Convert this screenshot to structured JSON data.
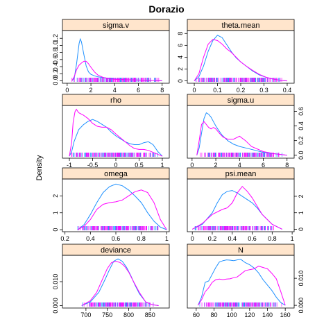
{
  "figure": {
    "title": "Dorazio",
    "ylabel": "Density"
  },
  "chart_data": [
    {
      "type": "line",
      "title": "sigma.v",
      "xlim": [
        -0.4,
        8.6
      ],
      "ylim": [
        -0.07,
        1.42
      ],
      "xticks": [
        0,
        2,
        4,
        6,
        8
      ],
      "yticks": [
        0.0,
        0.2,
        0.4,
        0.6,
        0.8,
        1.0,
        1.2
      ],
      "xtick_side": "bottom",
      "ytick_side": "left",
      "series": [
        {
          "color": "#1e90ff",
          "x": [
            0.4,
            0.6,
            0.8,
            1.0,
            1.1,
            1.2,
            1.4,
            1.6,
            1.8,
            2.0,
            2.3,
            2.6,
            3,
            3.5,
            4,
            5,
            6,
            7,
            8
          ],
          "y": [
            0,
            0.08,
            0.5,
            1.05,
            1.18,
            1.1,
            0.75,
            0.42,
            0.25,
            0.18,
            0.14,
            0.11,
            0.09,
            0.07,
            0.05,
            0.03,
            0.02,
            0.01,
            0
          ]
        },
        {
          "color": "#ff00ff",
          "x": [
            0.4,
            0.6,
            0.8,
            1.0,
            1.2,
            1.4,
            1.6,
            1.8,
            2.0,
            2.3,
            2.6,
            3,
            3.5,
            4,
            5,
            6,
            7,
            8
          ],
          "y": [
            0,
            0.12,
            0.32,
            0.44,
            0.5,
            0.55,
            0.55,
            0.48,
            0.38,
            0.25,
            0.16,
            0.1,
            0.06,
            0.04,
            0.03,
            0.02,
            0.01,
            0
          ]
        }
      ]
    },
    {
      "type": "line",
      "title": "theta.mean",
      "xlim": [
        -0.03,
        0.43
      ],
      "ylim": [
        -0.4,
        8.5
      ],
      "xticks": [
        0.0,
        0.1,
        0.2,
        0.3,
        0.4
      ],
      "yticks": [
        0,
        2,
        4,
        6,
        8
      ],
      "xtick_side": "bottom",
      "ytick_side": "left",
      "series": [
        {
          "color": "#1e90ff",
          "x": [
            0.0,
            0.02,
            0.04,
            0.06,
            0.08,
            0.1,
            0.12,
            0.14,
            0.16,
            0.18,
            0.2,
            0.22,
            0.25,
            0.28,
            0.31,
            0.34,
            0.37,
            0.4
          ],
          "y": [
            0,
            0.7,
            2.5,
            5.0,
            6.8,
            7.7,
            7.3,
            6.1,
            4.9,
            3.9,
            3.2,
            2.6,
            1.7,
            1.0,
            0.6,
            0.3,
            0.12,
            0
          ]
        },
        {
          "color": "#ff00ff",
          "x": [
            0.0,
            0.02,
            0.04,
            0.06,
            0.08,
            0.1,
            0.12,
            0.14,
            0.16,
            0.18,
            0.2,
            0.22,
            0.25,
            0.28,
            0.31,
            0.34,
            0.37,
            0.4
          ],
          "y": [
            0,
            1.2,
            4.0,
            6.2,
            7.0,
            6.8,
            6.2,
            5.4,
            4.8,
            4.0,
            3.2,
            2.6,
            1.8,
            1.1,
            0.6,
            0.3,
            0.1,
            0
          ]
        }
      ]
    },
    {
      "type": "line",
      "title": "rho",
      "xlim": [
        -1.15,
        1.15
      ],
      "ylim": [
        -0.04,
        1.05
      ],
      "xticks": [
        -1.0,
        -0.5,
        0.0,
        0.5,
        1.0
      ],
      "yticks": [],
      "xtick_side": "bottom",
      "ytick_side": "left",
      "series": [
        {
          "color": "#1e90ff",
          "x": [
            -1.0,
            -0.95,
            -0.9,
            -0.8,
            -0.7,
            -0.6,
            -0.5,
            -0.4,
            -0.3,
            -0.2,
            -0.1,
            0.0,
            0.1,
            0.2,
            0.3,
            0.4,
            0.5,
            0.6,
            0.7,
            0.8,
            0.9,
            1.0
          ],
          "y": [
            0,
            0.1,
            0.3,
            0.55,
            0.65,
            0.72,
            0.76,
            0.72,
            0.66,
            0.6,
            0.5,
            0.42,
            0.36,
            0.3,
            0.26,
            0.24,
            0.24,
            0.28,
            0.3,
            0.24,
            0.1,
            0
          ]
        },
        {
          "color": "#ff00ff",
          "x": [
            -1.0,
            -0.95,
            -0.92,
            -0.88,
            -0.85,
            -0.8,
            -0.7,
            -0.6,
            -0.5,
            -0.4,
            -0.3,
            -0.2,
            -0.1,
            0.0,
            0.1,
            0.2,
            0.3,
            0.4,
            0.5,
            0.6,
            0.7,
            0.8,
            0.9,
            1.0
          ],
          "y": [
            0,
            0.3,
            0.7,
            0.92,
            0.97,
            0.9,
            0.85,
            0.78,
            0.68,
            0.62,
            0.6,
            0.6,
            0.55,
            0.46,
            0.38,
            0.3,
            0.22,
            0.16,
            0.14,
            0.14,
            0.12,
            0.08,
            0.04,
            0
          ]
        }
      ]
    },
    {
      "type": "line",
      "title": "sigma.u",
      "xlim": [
        -0.4,
        8.6
      ],
      "ylim": [
        -0.04,
        0.68
      ],
      "xticks": [
        0,
        2,
        4,
        6,
        8
      ],
      "yticks": [
        0.0,
        0.2,
        0.4,
        0.6
      ],
      "xtick_side": "bottom",
      "ytick_side": "right",
      "series": [
        {
          "color": "#1e90ff",
          "x": [
            0.4,
            0.6,
            0.8,
            1.0,
            1.2,
            1.4,
            1.6,
            1.8,
            2.0,
            2.2,
            2.5,
            3,
            3.5,
            4,
            4.5,
            5,
            6,
            7,
            8
          ],
          "y": [
            0,
            0.1,
            0.3,
            0.5,
            0.58,
            0.56,
            0.52,
            0.46,
            0.4,
            0.35,
            0.28,
            0.2,
            0.15,
            0.12,
            0.1,
            0.08,
            0.04,
            0.02,
            0
          ]
        },
        {
          "color": "#ff00ff",
          "x": [
            0.4,
            0.6,
            0.8,
            1.0,
            1.2,
            1.4,
            1.6,
            1.8,
            2.0,
            2.3,
            2.6,
            3,
            3.5,
            4,
            4.5,
            5,
            6,
            7,
            8
          ],
          "y": [
            0,
            0.2,
            0.42,
            0.46,
            0.42,
            0.38,
            0.36,
            0.38,
            0.36,
            0.3,
            0.25,
            0.22,
            0.22,
            0.26,
            0.2,
            0.12,
            0.05,
            0.02,
            0
          ]
        }
      ]
    },
    {
      "type": "line",
      "title": "omega",
      "xlim": [
        0.18,
        1.02
      ],
      "ylim": [
        -0.12,
        3.0
      ],
      "xticks": [
        0.2,
        0.4,
        0.6,
        0.8,
        1.0
      ],
      "yticks": [
        0.0,
        1.0,
        2.0
      ],
      "xtick_side": "bottom",
      "ytick_side": "left",
      "series": [
        {
          "color": "#1e90ff",
          "x": [
            0.3,
            0.35,
            0.4,
            0.45,
            0.5,
            0.55,
            0.6,
            0.65,
            0.7,
            0.75,
            0.8,
            0.85,
            0.9,
            0.95,
            1.0
          ],
          "y": [
            0,
            0.3,
            0.9,
            1.6,
            2.2,
            2.55,
            2.7,
            2.6,
            2.35,
            2.0,
            1.6,
            1.0,
            0.5,
            0.15,
            0
          ]
        },
        {
          "color": "#ff00ff",
          "x": [
            0.3,
            0.35,
            0.4,
            0.45,
            0.5,
            0.55,
            0.6,
            0.65,
            0.7,
            0.75,
            0.8,
            0.85,
            0.9,
            0.95,
            1.0
          ],
          "y": [
            0,
            0.2,
            0.6,
            1.2,
            1.5,
            1.6,
            1.65,
            1.75,
            2.0,
            2.25,
            2.35,
            2.2,
            1.6,
            0.6,
            0
          ]
        }
      ]
    },
    {
      "type": "line",
      "title": "psi.mean",
      "xlim": [
        -0.05,
        1.02
      ],
      "ylim": [
        -0.15,
        3.05
      ],
      "xticks": [
        0.0,
        0.2,
        0.4,
        0.6,
        0.8,
        1.0
      ],
      "yticks": [
        0.0,
        1.0,
        2.0
      ],
      "xtick_side": "bottom",
      "ytick_side": "right",
      "series": [
        {
          "color": "#1e90ff",
          "x": [
            0.0,
            0.1,
            0.2,
            0.25,
            0.3,
            0.35,
            0.4,
            0.45,
            0.5,
            0.55,
            0.6,
            0.65,
            0.7,
            0.8,
            0.9
          ],
          "y": [
            0,
            0.3,
            1.0,
            1.6,
            2.1,
            2.3,
            2.35,
            2.2,
            2.0,
            1.8,
            1.6,
            1.3,
            0.9,
            0.3,
            0
          ]
        },
        {
          "color": "#ff00ff",
          "x": [
            0.0,
            0.1,
            0.2,
            0.3,
            0.35,
            0.4,
            0.45,
            0.5,
            0.55,
            0.6,
            0.65,
            0.7,
            0.8,
            0.9
          ],
          "y": [
            0,
            0.35,
            0.9,
            1.2,
            1.3,
            1.6,
            2.2,
            2.6,
            2.3,
            1.9,
            1.4,
            0.9,
            0.3,
            0
          ]
        }
      ]
    },
    {
      "type": "line",
      "title": "deviance",
      "xlim": [
        645,
        895
      ],
      "ylim": [
        -0.001,
        0.021
      ],
      "xticks": [
        700,
        750,
        800,
        850
      ],
      "yticks": [
        0.0,
        0.01
      ],
      "xtick_side": "bottom",
      "ytick_side": "left",
      "series": [
        {
          "color": "#1e90ff",
          "x": [
            690,
            710,
            730,
            745,
            755,
            765,
            775,
            785,
            795,
            805,
            815,
            825,
            840,
            855,
            870
          ],
          "y": [
            0,
            0.0015,
            0.0055,
            0.011,
            0.015,
            0.0185,
            0.0195,
            0.0185,
            0.016,
            0.0125,
            0.0085,
            0.005,
            0.0015,
            0.0004,
            0
          ]
        },
        {
          "color": "#ff00ff",
          "x": [
            690,
            710,
            725,
            740,
            750,
            760,
            770,
            780,
            790,
            800,
            810,
            825,
            840,
            855,
            870
          ],
          "y": [
            0,
            0.002,
            0.0055,
            0.0115,
            0.0155,
            0.018,
            0.0185,
            0.018,
            0.0165,
            0.014,
            0.0105,
            0.0055,
            0.0015,
            0.0004,
            0
          ]
        }
      ]
    },
    {
      "type": "line",
      "title": "N",
      "xlim": [
        50,
        170
      ],
      "ylim": [
        -0.001,
        0.0185
      ],
      "xticks": [
        60,
        80,
        100,
        120,
        140,
        160
      ],
      "yticks": [
        0.0,
        0.01
      ],
      "xtick_side": "bottom",
      "ytick_side": "right",
      "series": [
        {
          "color": "#1e90ff",
          "x": [
            62,
            66,
            70,
            74,
            78,
            82,
            86,
            90,
            94,
            98,
            102,
            106,
            110,
            115,
            120,
            125,
            130,
            135,
            140,
            145,
            150,
            155,
            160
          ],
          "y": [
            0,
            0.003,
            0.0085,
            0.009,
            0.0115,
            0.014,
            0.016,
            0.0165,
            0.0168,
            0.0167,
            0.0165,
            0.0168,
            0.017,
            0.0158,
            0.015,
            0.0138,
            0.012,
            0.0095,
            0.0075,
            0.0055,
            0.003,
            0.001,
            0
          ]
        },
        {
          "color": "#ff00ff",
          "x": [
            62,
            66,
            70,
            74,
            78,
            82,
            86,
            90,
            94,
            98,
            102,
            106,
            110,
            115,
            120,
            125,
            130,
            135,
            140,
            145,
            150,
            155,
            160
          ],
          "y": [
            0,
            0.002,
            0.005,
            0.0065,
            0.0085,
            0.0095,
            0.0097,
            0.0095,
            0.0097,
            0.0098,
            0.0102,
            0.0105,
            0.0115,
            0.0128,
            0.0132,
            0.0135,
            0.0145,
            0.014,
            0.0135,
            0.0118,
            0.0098,
            0.005,
            0
          ]
        }
      ]
    }
  ]
}
